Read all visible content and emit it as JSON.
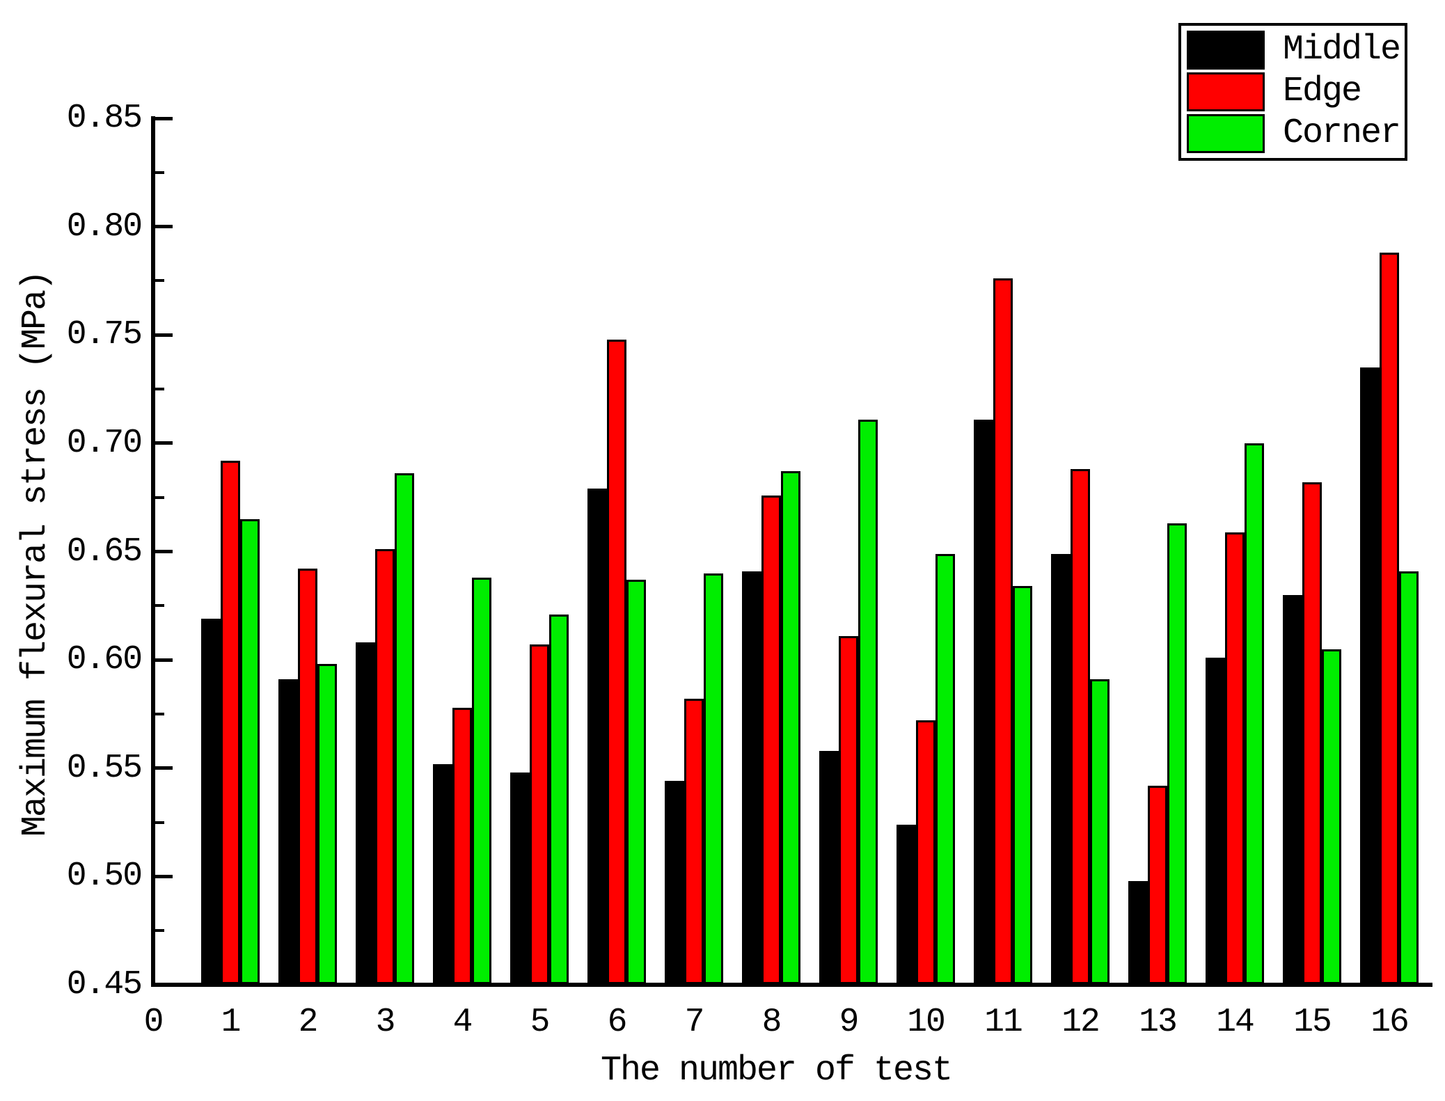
{
  "chart_data": {
    "type": "bar",
    "title": "",
    "xlabel": "The number of test",
    "ylabel": "Maximum flexural stress (MPa)",
    "categories": [
      1,
      2,
      3,
      4,
      5,
      6,
      7,
      8,
      9,
      10,
      11,
      12,
      13,
      14,
      15,
      16
    ],
    "xtick_labels": [
      "0",
      "1",
      "2",
      "3",
      "4",
      "5",
      "6",
      "7",
      "8",
      "9",
      "10",
      "11",
      "12",
      "13",
      "14",
      "15",
      "16"
    ],
    "series": [
      {
        "name": "Middle",
        "color": "#000000",
        "values": [
          0.619,
          0.591,
          0.608,
          0.552,
          0.548,
          0.679,
          0.544,
          0.641,
          0.558,
          0.524,
          0.711,
          0.649,
          0.498,
          0.601,
          0.63,
          0.735
        ]
      },
      {
        "name": "Edge",
        "color": "#ff0000",
        "values": [
          0.692,
          0.642,
          0.651,
          0.578,
          0.607,
          0.748,
          0.582,
          0.676,
          0.611,
          0.572,
          0.776,
          0.688,
          0.542,
          0.659,
          0.682,
          0.788
        ]
      },
      {
        "name": "Corner",
        "color": "#00ee00",
        "values": [
          0.665,
          0.598,
          0.686,
          0.638,
          0.621,
          0.637,
          0.64,
          0.687,
          0.711,
          0.649,
          0.634,
          0.591,
          0.663,
          0.7,
          0.605,
          0.641
        ]
      }
    ],
    "ylim": [
      0.45,
      0.85
    ],
    "ytick_step": 0.05,
    "yminor": true,
    "ytick_label_format": "0.00",
    "bar_edge_color": "#000000",
    "background_color": "#ffffff",
    "grid": false,
    "legend_position": "top-right"
  },
  "legend": {
    "items": [
      {
        "label": "Middle",
        "color": "#000000"
      },
      {
        "label": "Edge",
        "color": "#ff0000"
      },
      {
        "label": "Corner",
        "color": "#00ee00"
      }
    ]
  }
}
